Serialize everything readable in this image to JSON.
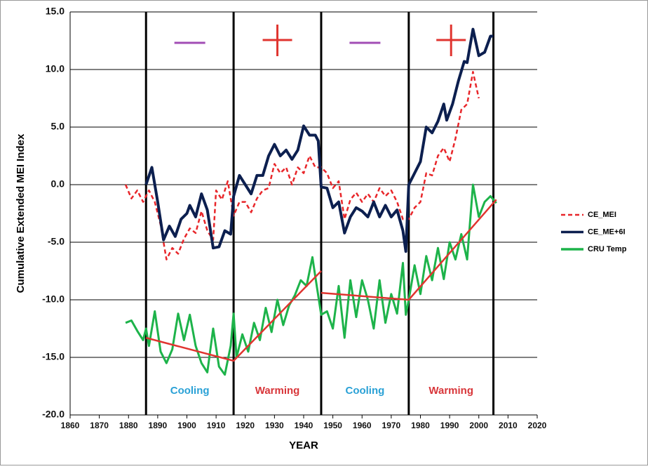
{
  "chart_data": {
    "type": "line",
    "y_label": "Cumulative Extended MEI Index",
    "x_label": "YEAR",
    "xlim": [
      1860,
      2020
    ],
    "xticks": [
      1860,
      1870,
      1880,
      1890,
      1900,
      1910,
      1920,
      1930,
      1940,
      1950,
      1960,
      1970,
      1980,
      1990,
      2000,
      2010,
      2020
    ],
    "ylim": [
      -20,
      15
    ],
    "yticks": [
      {
        "value": -20,
        "label": "-20.0"
      },
      {
        "value": -15,
        "label": "-15.0"
      },
      {
        "value": -10,
        "label": "-10.0"
      },
      {
        "value": -5,
        "label": "-5.0"
      },
      {
        "value": 0,
        "label": "0.0"
      },
      {
        "value": 5,
        "label": "5.0"
      },
      {
        "value": 10,
        "label": "10.0"
      },
      {
        "value": 15,
        "label": "15.0"
      }
    ],
    "grid": true,
    "series": [
      {
        "name": "CE_MEI",
        "color": "#e8262a",
        "dash": true,
        "x": [
          1879,
          1881,
          1883,
          1885,
          1887,
          1889,
          1891,
          1893,
          1895,
          1897,
          1899,
          1901,
          1903,
          1905,
          1907,
          1909,
          1910,
          1912,
          1914,
          1916,
          1918,
          1920,
          1922,
          1924,
          1926,
          1928,
          1930,
          1932,
          1934,
          1936,
          1938,
          1940,
          1942,
          1944,
          1946,
          1948,
          1950,
          1952,
          1954,
          1956,
          1958,
          1960,
          1962,
          1964,
          1966,
          1968,
          1970,
          1972,
          1974,
          1976,
          1978,
          1980,
          1982,
          1984,
          1986,
          1988,
          1990,
          1992,
          1994,
          1996,
          1998,
          2000
        ],
        "values": [
          0,
          -1.2,
          -0.5,
          -1.5,
          -0.5,
          -1.5,
          -3.5,
          -6.5,
          -5.5,
          -6,
          -4.7,
          -3.8,
          -4.2,
          -2.3,
          -4,
          -4.8,
          -0.5,
          -1.3,
          0.3,
          -2.7,
          -1.5,
          -1.5,
          -2.4,
          -1.2,
          -0.5,
          -0.3,
          1.8,
          1.0,
          1.5,
          0,
          1.5,
          1.0,
          2.5,
          1.5,
          1.5,
          1.0,
          -0.3,
          0.3,
          -3.0,
          -1.3,
          -0.7,
          -1.5,
          -0.8,
          -1.5,
          -0.3,
          -1,
          -0.5,
          -1.5,
          -3,
          -3,
          -2.0,
          -1.5,
          1.0,
          0.8,
          2.5,
          3.2,
          2.0,
          4.0,
          6.5,
          7.0,
          9.8,
          7.5
        ]
      },
      {
        "name": "CE_ME+6I",
        "color": "#0c1f4f",
        "dash": false,
        "x": [
          1886,
          1888,
          1890,
          1892,
          1894,
          1896,
          1898,
          1900,
          1901,
          1903,
          1905,
          1907,
          1909,
          1911,
          1913,
          1915,
          1916,
          1918,
          1920,
          1922,
          1924,
          1926,
          1928,
          1930,
          1932,
          1934,
          1936,
          1938,
          1940,
          1942,
          1944,
          1945,
          1946,
          1948,
          1950,
          1952,
          1954,
          1956,
          1958,
          1960,
          1962,
          1964,
          1966,
          1968,
          1970,
          1972,
          1974,
          1975,
          1976,
          1978,
          1980,
          1982,
          1984,
          1986,
          1988,
          1989,
          1991,
          1993,
          1995,
          1996,
          1998,
          2000,
          2002,
          2004,
          2005
        ],
        "values": [
          0,
          1.5,
          -1.5,
          -4.8,
          -3.6,
          -4.5,
          -3,
          -2.5,
          -1.8,
          -2.8,
          -0.8,
          -2.2,
          -5.5,
          -5.4,
          -4.0,
          -4.3,
          -1.0,
          0.8,
          0,
          -0.8,
          0.8,
          0.8,
          2.5,
          3.5,
          2.5,
          3.0,
          2.2,
          3.0,
          5.1,
          4.3,
          4.3,
          3.8,
          -0.2,
          -0.3,
          -2,
          -1.5,
          -4.2,
          -2.8,
          -2.0,
          -2.3,
          -2.8,
          -1.5,
          -2.8,
          -1.8,
          -2.8,
          -2.2,
          -4.0,
          -5.8,
          0.0,
          1.0,
          2.0,
          5.0,
          4.5,
          5.5,
          7.0,
          5.6,
          7.0,
          9.0,
          10.7,
          10.6,
          13.5,
          11.2,
          11.5,
          12.9,
          12.9
        ]
      },
      {
        "name": "CRU Temp",
        "color": "#1db34a",
        "dash": false,
        "x": [
          1879,
          1881,
          1883,
          1885,
          1886,
          1887,
          1889,
          1891,
          1893,
          1895,
          1897,
          1899,
          1901,
          1903,
          1905,
          1907,
          1909,
          1911,
          1913,
          1915,
          1916,
          1917,
          1919,
          1921,
          1923,
          1925,
          1927,
          1929,
          1931,
          1933,
          1935,
          1937,
          1939,
          1941,
          1943,
          1944,
          1946,
          1948,
          1950,
          1952,
          1954,
          1956,
          1958,
          1960,
          1962,
          1964,
          1966,
          1968,
          1970,
          1972,
          1974,
          1975,
          1976,
          1978,
          1980,
          1982,
          1984,
          1986,
          1988,
          1990,
          1992,
          1994,
          1996,
          1998,
          2000,
          2002,
          2004,
          2006
        ],
        "values": [
          -12,
          -11.8,
          -12.7,
          -13.5,
          -12.5,
          -14,
          -11,
          -14.5,
          -15.5,
          -14.3,
          -11.2,
          -13.5,
          -11.3,
          -14,
          -15.5,
          -16.3,
          -12.5,
          -15.8,
          -16.5,
          -14,
          -11.2,
          -15,
          -13,
          -14.5,
          -12,
          -13.5,
          -10.7,
          -12.8,
          -10,
          -12.2,
          -10.5,
          -9.6,
          -8.3,
          -8.8,
          -6.3,
          -8,
          -11.3,
          -11.0,
          -12.5,
          -8.8,
          -13.3,
          -8.3,
          -11.5,
          -8.3,
          -10,
          -12.5,
          -8.3,
          -12,
          -9.5,
          -11.2,
          -6.8,
          -11.3,
          -10,
          -7.0,
          -9.5,
          -6.2,
          -8.3,
          -5.5,
          -8.2,
          -5.0,
          -6.5,
          -4.3,
          -6.5,
          0.0,
          -2.8,
          -1.5,
          -1.0,
          -1.6
        ]
      }
    ],
    "trends": [
      {
        "color": "#e0342f",
        "x": [
          1886,
          1916,
          1946
        ],
        "values": [
          -13.3,
          -15.3,
          -7.5
        ]
      },
      {
        "color": "#e0342f",
        "x": [
          1946,
          1976,
          2006
        ],
        "values": [
          -9.4,
          -10,
          -1.3
        ]
      }
    ],
    "period_boundaries": [
      1886,
      1916,
      1946,
      1976,
      2005
    ],
    "annotations": [
      "Cooling",
      "Warming",
      "Cooling",
      "Warming"
    ]
  }
}
